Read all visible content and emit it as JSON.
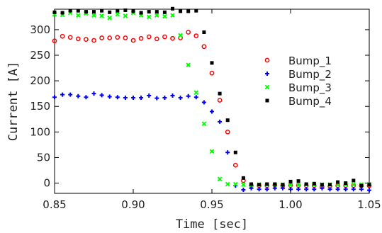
{
  "chart_data": {
    "type": "scatter",
    "title": "",
    "xlabel": "Time [sec]",
    "ylabel": "Current [A]",
    "xlim": [
      0.85,
      1.05
    ],
    "ylim": [
      -20,
      340
    ],
    "x_ticks": [
      "0.85",
      "0.90",
      "0.95",
      "1.00",
      "1.05"
    ],
    "x_tick_values": [
      0.85,
      0.9,
      0.95,
      1.0,
      1.05
    ],
    "y_ticks": [
      "0",
      "50",
      "100",
      "150",
      "200",
      "250",
      "300"
    ],
    "y_tick_values": [
      0,
      50,
      100,
      150,
      200,
      250,
      300
    ],
    "grid": false,
    "legend_position": "right",
    "series": [
      {
        "name": "Bump_1",
        "marker": "open-circle",
        "color": "#ff0000",
        "x": [
          0.85,
          0.855,
          0.86,
          0.865,
          0.87,
          0.875,
          0.88,
          0.885,
          0.89,
          0.895,
          0.9,
          0.905,
          0.91,
          0.915,
          0.92,
          0.925,
          0.93,
          0.935,
          0.94,
          0.945,
          0.95,
          0.955,
          0.96,
          0.965,
          0.97,
          0.975,
          0.98,
          0.985,
          0.99,
          0.995,
          1.0,
          1.005,
          1.01,
          1.015,
          1.02,
          1.025,
          1.03,
          1.035,
          1.04,
          1.045,
          1.05
        ],
        "y": [
          278,
          287,
          285,
          282,
          281,
          279,
          284,
          284,
          285,
          284,
          279,
          283,
          286,
          282,
          286,
          283,
          284,
          295,
          288,
          267,
          215,
          162,
          100,
          35,
          5,
          -5,
          -5,
          -5,
          -4,
          -5,
          -5,
          -5,
          -5,
          -5,
          -7,
          -6,
          -5,
          -5,
          -5,
          -5,
          -5
        ]
      },
      {
        "name": "Bump_2",
        "marker": "plus",
        "color": "#0000ff",
        "x": [
          0.85,
          0.855,
          0.86,
          0.865,
          0.87,
          0.875,
          0.88,
          0.885,
          0.89,
          0.895,
          0.9,
          0.905,
          0.91,
          0.915,
          0.92,
          0.925,
          0.93,
          0.935,
          0.94,
          0.945,
          0.95,
          0.955,
          0.96,
          0.965,
          0.97,
          0.975,
          0.98,
          0.985,
          0.99,
          0.995,
          1.0,
          1.005,
          1.01,
          1.015,
          1.02,
          1.025,
          1.03,
          1.035,
          1.04,
          1.045,
          1.05
        ],
        "y": [
          168,
          173,
          173,
          170,
          168,
          175,
          172,
          169,
          168,
          167,
          167,
          167,
          171,
          166,
          167,
          171,
          167,
          170,
          168,
          158,
          140,
          120,
          60,
          -5,
          -13,
          -10,
          -12,
          -12,
          -10,
          -10,
          -12,
          -12,
          -12,
          -12,
          -10,
          -12,
          -12,
          -12,
          -12,
          -12,
          -14
        ]
      },
      {
        "name": "Bump_3",
        "marker": "x",
        "color": "#00ff00",
        "x": [
          0.85,
          0.855,
          0.86,
          0.865,
          0.87,
          0.875,
          0.88,
          0.885,
          0.89,
          0.895,
          0.9,
          0.905,
          0.91,
          0.915,
          0.92,
          0.925,
          0.93,
          0.935,
          0.94,
          0.945,
          0.95,
          0.955,
          0.96,
          0.965,
          0.97,
          0.975,
          0.98,
          0.985,
          0.99,
          0.995,
          1.0,
          1.005,
          1.01,
          1.015,
          1.02,
          1.025,
          1.03,
          1.035,
          1.04,
          1.045,
          1.05
        ],
        "y": [
          330,
          329,
          333,
          328,
          332,
          328,
          327,
          323,
          330,
          327,
          333,
          328,
          325,
          328,
          326,
          328,
          289,
          231,
          177,
          116,
          62,
          8,
          -2,
          -2,
          -3,
          -4,
          -3,
          -3,
          -3,
          -3,
          -4,
          -4,
          -3,
          -3,
          -3,
          -3,
          -3,
          -3,
          -3,
          -3,
          -2
        ]
      },
      {
        "name": "Bump_4",
        "marker": "filled-square",
        "color": "#000000",
        "x": [
          0.85,
          0.855,
          0.86,
          0.865,
          0.87,
          0.875,
          0.88,
          0.885,
          0.89,
          0.895,
          0.9,
          0.905,
          0.91,
          0.915,
          0.92,
          0.925,
          0.93,
          0.935,
          0.94,
          0.945,
          0.95,
          0.955,
          0.96,
          0.965,
          0.97,
          0.975,
          0.98,
          0.985,
          0.99,
          0.995,
          1.0,
          1.005,
          1.01,
          1.015,
          1.02,
          1.025,
          1.03,
          1.035,
          1.04,
          1.045,
          1.05
        ],
        "y": [
          334,
          333,
          337,
          337,
          335,
          335,
          337,
          334,
          337,
          338,
          336,
          333,
          335,
          335,
          334,
          341,
          336,
          336,
          337,
          295,
          235,
          175,
          123,
          60,
          10,
          -2,
          -3,
          -2,
          -2,
          -3,
          3,
          4,
          -2,
          -1,
          -3,
          -3,
          2,
          0,
          5,
          -5,
          -3
        ]
      }
    ]
  }
}
